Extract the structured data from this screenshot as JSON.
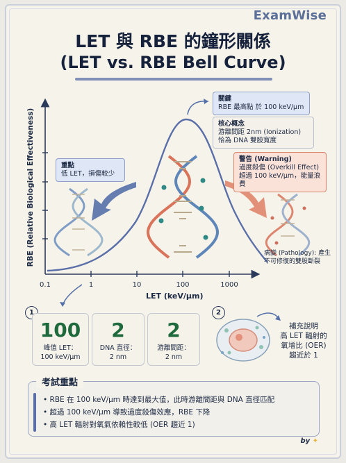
{
  "brand": "ExamWise",
  "title": {
    "line1": "LET 與 RBE 的鐘形關係",
    "line2": "(LET vs. RBE Bell Curve)"
  },
  "axes": {
    "y_label": "RBE (Relative Biological Effectiveness)",
    "x_label": "LET (keV/μm)",
    "x_ticks": [
      "0.1",
      "1",
      "10",
      "100",
      "1000"
    ]
  },
  "chart_data": {
    "type": "line",
    "x_scale": "log",
    "x_ticks": [
      0.1,
      1,
      10,
      100,
      1000
    ],
    "peak_x": 100,
    "series": [
      {
        "shape": "bell",
        "x": [
          0.1,
          1,
          10,
          30,
          100,
          300,
          1000
        ],
        "y": [
          0.05,
          0.12,
          0.35,
          0.7,
          1.0,
          0.7,
          0.35
        ]
      }
    ],
    "grid": false
  },
  "callouts": {
    "peak": {
      "head": "關鍵",
      "text": "RBE 最高點 於 100 keV/μm"
    },
    "concept": {
      "head": "核心概念",
      "lines": [
        "游離間距 2nm (Ionization)",
        "恰為 DNA 雙股寬度"
      ]
    },
    "warning": {
      "head": "警告 (Warning)",
      "lines": [
        "過度殺傷 (Overkill Effect)",
        "超過 100 keV/μm，能量浪費"
      ]
    },
    "focus": {
      "head": "重點",
      "text": "低 LET，損傷較少"
    },
    "pathology": "病變 (Pathology): 產生不可修復的雙股斷裂"
  },
  "stats": [
    {
      "value": "100",
      "label1": "峰值 LET：",
      "label2": "100 keV/μm"
    },
    {
      "value": "2",
      "label1": "DNA 直徑：",
      "label2": "2 nm"
    },
    {
      "value": "2",
      "label1": "游離間距：",
      "label2": "2 nm"
    }
  ],
  "badges": {
    "one": "1",
    "two": "2"
  },
  "supplement": {
    "lines": [
      "補充說明",
      "高 LET 輻射的",
      "氧增比 (OER)",
      "趨近於 1"
    ]
  },
  "exam": {
    "title": "考試重點",
    "items": [
      "RBE 在 100 keV/μm 時達到最大值，此時游離間距與 DNA 直徑匹配",
      "超過 100 keV/μm 導致過度殺傷效應，RBE 下降",
      "高 LET 輻射對氧氣依賴性較低 (OER 趨近 1)"
    ]
  },
  "signature": "by",
  "colors": {
    "curve": "#5a6fa8",
    "left_arrow": "#5570a8",
    "right_arrow": "#e0866c",
    "stat_green": "#1f6a3d"
  }
}
